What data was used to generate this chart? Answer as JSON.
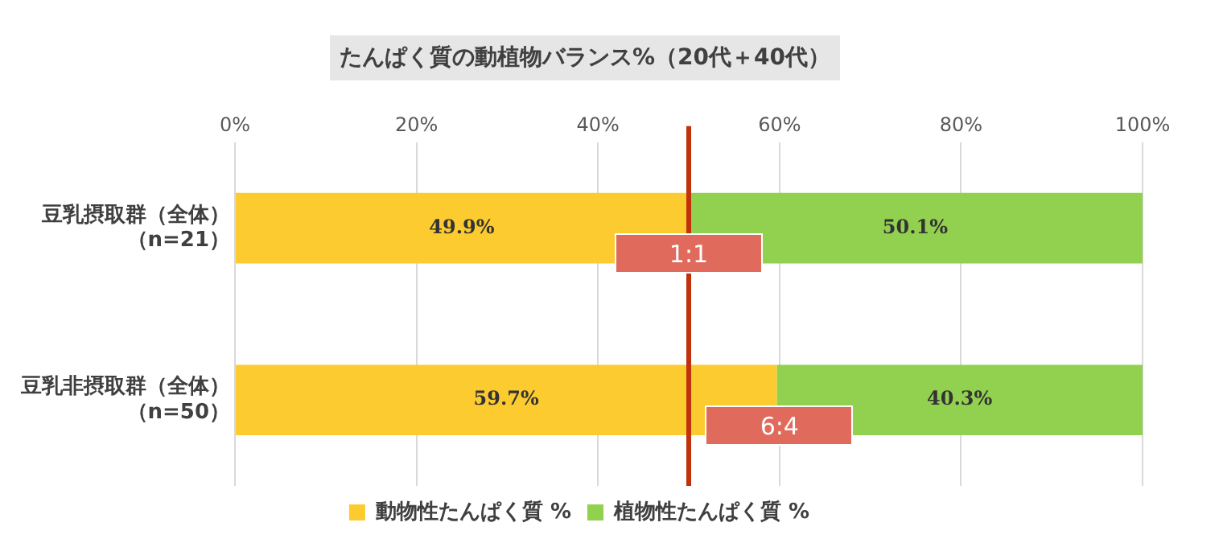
{
  "chart_data": {
    "type": "bar",
    "orientation": "horizontal",
    "stacked": true,
    "title": "たんぱく質の動植物バランス%（20代＋40代）",
    "categories": [
      "豆乳摂取群（全体）（n=21）",
      "豆乳非摂取群（全体）（n=50）"
    ],
    "series": [
      {
        "name": "動物性たんぱく質 %",
        "color": "#fccb2f",
        "values": [
          49.9,
          59.7
        ],
        "value_labels": [
          "49.9%",
          "59.7%"
        ]
      },
      {
        "name": "植物性たんぱく質 %",
        "color": "#92d050",
        "values": [
          50.1,
          40.3
        ],
        "value_labels": [
          "50.1%",
          "40.3%"
        ]
      }
    ],
    "xlim": [
      0,
      100
    ],
    "xticks": [
      {
        "value": 0,
        "label": "0%"
      },
      {
        "value": 20,
        "label": "20%"
      },
      {
        "value": 40,
        "label": "40%"
      },
      {
        "value": 60,
        "label": "60%"
      },
      {
        "value": 80,
        "label": "80%"
      },
      {
        "value": 100,
        "label": "100%"
      }
    ],
    "grid": "x",
    "legend": "bottom",
    "ref_lines": [
      {
        "axis": "x",
        "value": 50,
        "color": "#c0310c"
      }
    ],
    "annotations": [
      {
        "text": "1:1",
        "x": 50,
        "y": "豆乳摂取群（全体）（n=21）"
      },
      {
        "text": "6:4",
        "x": 60,
        "y": "豆乳非摂取群（全体）（n=50）"
      }
    ]
  }
}
